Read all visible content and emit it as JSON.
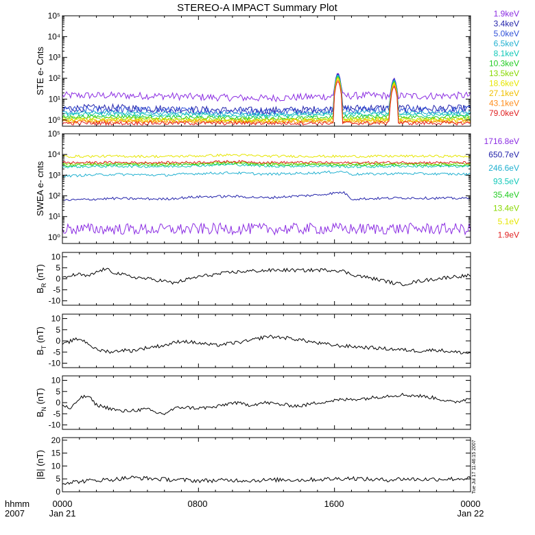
{
  "title": "STEREO-A IMPACT Summary Plot",
  "footer": {
    "x_label_top": "hhmm",
    "x_label_bottom": "2007",
    "x_tick_labels": [
      "0000",
      "0800",
      "1600",
      "0000"
    ],
    "x_date_labels": [
      "Jan 21",
      "",
      "",
      "Jan 22"
    ],
    "timestamp": "Tue Jul 17 11:46:15 2007"
  },
  "colors": {
    "purple": "#8a2be2",
    "navy": "#2222aa",
    "blue": "#2f4fd8",
    "cyan": "#20b0d0",
    "teal": "#10c8b8",
    "green": "#22cc22",
    "lime": "#88d800",
    "yellow": "#e6e600",
    "gold": "#f0c000",
    "orange": "#ff8c1a",
    "red": "#e01e1e",
    "black": "#000000"
  },
  "chart_data": [
    {
      "type": "line",
      "ylabel": "STE e- Cnts",
      "yscale": "log",
      "ylim": [
        0.5,
        100000
      ],
      "ytick_labels": [
        "10⁰",
        "10¹",
        "10²",
        "10³",
        "10⁴",
        "10⁵"
      ],
      "x": [
        0,
        3,
        6,
        9,
        12,
        15,
        18,
        21,
        24
      ],
      "legend": [
        "1.9keV",
        "3.4keV",
        "5.0keV",
        "6.5keV",
        "8.1keV",
        "10.3keV",
        "13.5keV",
        "18.6keV",
        "27.1keV",
        "43.1keV",
        "79.0keV"
      ],
      "series": [
        {
          "name": "1.9keV",
          "color": "#8a2be2",
          "values": [
            15,
            15,
            14,
            12,
            11,
            13,
            15,
            14,
            15
          ]
        },
        {
          "name": "3.4keV",
          "color": "#2222aa",
          "values": [
            3.6,
            3.8,
            3.4,
            3.0,
            2.8,
            3.2,
            3.8,
            3.5,
            3.6
          ]
        },
        {
          "name": "5.0keV",
          "color": "#2f4fd8",
          "values": [
            3,
            3.1,
            2.9,
            2.6,
            2.5,
            2.8,
            3.2,
            3.0,
            3.1
          ]
        },
        {
          "name": "6.5keV",
          "color": "#20b0d0",
          "values": [
            2.2,
            2.3,
            2.1,
            2.0,
            1.9,
            2.1,
            2.4,
            2.2,
            2.3
          ]
        },
        {
          "name": "8.1keV",
          "color": "#10c8b8",
          "values": [
            1.8,
            1.9,
            1.7,
            1.6,
            1.6,
            1.7,
            1.9,
            1.8,
            1.8
          ]
        },
        {
          "name": "10.3keV",
          "color": "#22cc22",
          "values": [
            1.4,
            1.5,
            1.3,
            1.3,
            1.2,
            1.3,
            1.5,
            1.4,
            1.4
          ]
        },
        {
          "name": "13.5keV",
          "color": "#88d800",
          "values": [
            1.2,
            1.2,
            1.1,
            1.1,
            1.0,
            1.1,
            1.2,
            1.1,
            1.2
          ]
        },
        {
          "name": "18.6keV",
          "color": "#e6e600",
          "values": [
            1.0,
            1.0,
            1.0,
            0.9,
            0.9,
            1.0,
            1.0,
            1.0,
            1.0
          ]
        },
        {
          "name": "27.1keV",
          "color": "#f0c000",
          "values": [
            0.9,
            0.9,
            0.9,
            0.9,
            0.9,
            0.9,
            0.9,
            0.9,
            0.9
          ]
        },
        {
          "name": "43.1keV",
          "color": "#ff8c1a",
          "values": [
            0.8,
            0.8,
            0.8,
            0.8,
            0.8,
            0.8,
            0.8,
            0.8,
            0.8
          ]
        },
        {
          "name": "79.0keV",
          "color": "#e01e1e",
          "values": [
            0.7,
            0.7,
            0.7,
            0.7,
            0.7,
            0.7,
            0.7,
            0.7,
            0.7
          ]
        }
      ],
      "annotations": [
        {
          "text": "spike",
          "x": 16.2,
          "peak": 200
        },
        {
          "text": "spike",
          "x": 19.5,
          "peak": 110
        }
      ]
    },
    {
      "type": "line",
      "ylabel": "SWEA e- cnts",
      "yscale": "log",
      "ylim": [
        0.5,
        100000
      ],
      "ytick_labels": [
        "10⁰",
        "10¹",
        "10²",
        "10³",
        "10⁴",
        "10⁵"
      ],
      "x": [
        0,
        3,
        6,
        8,
        10,
        12,
        15,
        16.5,
        17,
        20,
        24
      ],
      "legend": [
        "1716.8eV",
        "650.7eV",
        "246.6eV",
        "93.5eV",
        "35.4eV",
        "13.4eV",
        "5.1eV",
        "1.9eV"
      ],
      "series": [
        {
          "name": "1716.8eV",
          "color": "#8a2be2",
          "values": [
            2.5,
            2.5,
            2.4,
            2.5,
            2.6,
            2.5,
            2.6,
            2.6,
            2.5,
            2.6,
            2.5
          ]
        },
        {
          "name": "650.7eV",
          "color": "#2222aa",
          "values": [
            60,
            75,
            70,
            90,
            95,
            80,
            110,
            150,
            70,
            80,
            75
          ]
        },
        {
          "name": "246.6eV",
          "color": "#20b0d0",
          "values": [
            900,
            1100,
            1000,
            1200,
            1300,
            1100,
            1300,
            1500,
            1100,
            1200,
            1100
          ]
        },
        {
          "name": "93.5eV",
          "color": "#10c8b8",
          "values": [
            2500,
            2700,
            2600,
            2900,
            3300,
            2700,
            2800,
            2600,
            2500,
            2700,
            2600
          ]
        },
        {
          "name": "35.4eV",
          "color": "#22cc22",
          "values": [
            3000,
            3200,
            3100,
            3300,
            3800,
            3200,
            3200,
            3000,
            3100,
            3200,
            3100
          ]
        },
        {
          "name": "13.4eV",
          "color": "#88d800",
          "values": [
            3500,
            3600,
            3500,
            3700,
            4200,
            3600,
            3600,
            3400,
            3500,
            3600,
            3500
          ]
        },
        {
          "name": "5.1eV",
          "color": "#e6e600",
          "values": [
            8000,
            8200,
            8000,
            8500,
            9500,
            8300,
            8200,
            8000,
            8100,
            8300,
            8200
          ]
        },
        {
          "name": "1.9eV",
          "color": "#e01e1e",
          "values": [
            4000,
            4100,
            4000,
            4200,
            4600,
            4100,
            4100,
            3900,
            4000,
            4100,
            4000
          ]
        }
      ]
    },
    {
      "type": "line",
      "ylabel": "B",
      "ylabel_sub": "R",
      "ylabel_unit": " (nT)",
      "ylim": [
        -12,
        12
      ],
      "ytick_labels": [
        "-10",
        "-5",
        "0",
        "5",
        "10"
      ],
      "yticks": [
        -10,
        -5,
        0,
        5,
        10
      ],
      "x": [
        0,
        0.5,
        1,
        1.5,
        2,
        2.5,
        3,
        3.5,
        4,
        5,
        6,
        6.5,
        7,
        8,
        9,
        10,
        11,
        12,
        13,
        14,
        15,
        16,
        16.5,
        17,
        18,
        19,
        19.5,
        20,
        21,
        22,
        23,
        24
      ],
      "series": [
        {
          "name": "B_R",
          "color": "#000000",
          "values": [
            0,
            1.5,
            2,
            1,
            3,
            4.5,
            3,
            2,
            1,
            0,
            -1,
            -2,
            -1,
            1,
            2,
            3,
            3.5,
            3.8,
            4,
            3.8,
            4,
            4,
            3.5,
            2,
            0.5,
            -1,
            -2,
            -2.5,
            -1,
            0,
            1,
            1.5
          ]
        }
      ]
    },
    {
      "type": "line",
      "ylabel": "B",
      "ylabel_sub": "T",
      "ylabel_unit": " (nT)",
      "ylim": [
        -12,
        12
      ],
      "ytick_labels": [
        "-10",
        "-5",
        "0",
        "5",
        "10"
      ],
      "yticks": [
        -10,
        -5,
        0,
        5,
        10
      ],
      "x": [
        0,
        0.5,
        1,
        1.5,
        2,
        2.5,
        3,
        3.5,
        4,
        5,
        6,
        7,
        8,
        9,
        10,
        11,
        12,
        13,
        14,
        15,
        16,
        17,
        18,
        19,
        20,
        21,
        22,
        23,
        24
      ],
      "series": [
        {
          "name": "B_T",
          "color": "#000000",
          "values": [
            -2,
            0,
            1,
            -1,
            -4,
            -4.5,
            -5,
            -4,
            -4.5,
            -3,
            -2,
            0,
            -1,
            -2,
            -1,
            0,
            2,
            1.5,
            0.5,
            -1,
            -2,
            -2.5,
            -3,
            -3.5,
            -4,
            -4.5,
            -4,
            -5,
            -5.5
          ]
        }
      ]
    },
    {
      "type": "line",
      "ylabel": "B",
      "ylabel_sub": "N",
      "ylabel_unit": " (nT)",
      "ylim": [
        -12,
        12
      ],
      "ytick_labels": [
        "-10",
        "-5",
        "0",
        "5",
        "10"
      ],
      "yticks": [
        -10,
        -5,
        0,
        5,
        10
      ],
      "x": [
        0,
        0.5,
        1,
        1.5,
        2,
        2.5,
        3,
        3.5,
        4,
        5,
        5.5,
        6,
        6.5,
        7,
        8,
        9,
        10,
        11,
        12,
        13,
        14,
        15,
        16,
        17,
        18,
        19,
        20,
        21,
        22,
        23,
        24
      ],
      "series": [
        {
          "name": "B_N",
          "color": "#000000",
          "values": [
            -1,
            -3,
            2,
            3,
            -1,
            -2,
            -3,
            -4,
            -3.5,
            -3,
            -4.5,
            -5,
            -3,
            -2,
            -2.5,
            -2,
            0,
            -1,
            0,
            -1,
            -1.5,
            0,
            1,
            1.5,
            2,
            3,
            3.5,
            3,
            2,
            0,
            2
          ]
        }
      ]
    },
    {
      "type": "line",
      "ylabel": "|B| (nT)",
      "ylim": [
        0,
        21
      ],
      "ytick_labels": [
        "0",
        "5",
        "10",
        "15",
        "20"
      ],
      "yticks": [
        0,
        5,
        10,
        15,
        20
      ],
      "x": [
        0,
        1,
        2,
        3,
        4,
        5,
        6,
        7,
        8,
        9,
        10,
        11,
        12,
        13,
        14,
        15,
        16,
        17,
        18,
        19,
        20,
        21,
        22,
        23,
        24
      ],
      "series": [
        {
          "name": "|B|",
          "color": "#000000",
          "values": [
            3.5,
            4,
            4.5,
            4.8,
            5.5,
            5.2,
            4.8,
            4.6,
            4.3,
            4.4,
            4.5,
            4.4,
            4.5,
            4.7,
            4.6,
            4.8,
            5,
            5.3,
            4.8,
            4.6,
            5,
            4.8,
            4.9,
            5,
            5.2
          ]
        }
      ]
    }
  ]
}
